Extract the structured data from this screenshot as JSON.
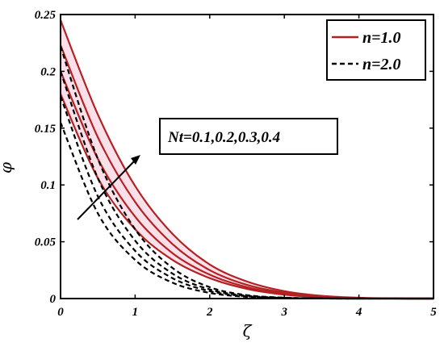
{
  "chart_data": {
    "type": "line",
    "xlabel": "ζ",
    "ylabel": "φ",
    "xlim": [
      0,
      5
    ],
    "ylim": [
      0,
      0.25
    ],
    "x_ticks": [
      "0",
      "1",
      "2",
      "3",
      "4",
      "5"
    ],
    "y_ticks": [
      "0",
      "0.05",
      "0.1",
      "0.15",
      "0.2",
      "0.25"
    ],
    "legend_position": "top-right",
    "annotation": "Nt=0.1,0.2,0.3,0.4",
    "legend": [
      {
        "label": "n=1.0",
        "color": "#b22222",
        "style": "solid"
      },
      {
        "label": "n=2.0",
        "color": "#000000",
        "style": "dashed"
      }
    ],
    "series": [
      {
        "name": "n=1.0",
        "nt": "0.1",
        "color": "#b22222",
        "style": "solid",
        "x": [
          0,
          0.5,
          1,
          1.5,
          2,
          2.5,
          3,
          3.5,
          4,
          4.5,
          5
        ],
        "y": [
          0.18,
          0.106,
          0.061,
          0.034,
          0.018,
          0.0085,
          0.0035,
          0.0012,
          0.0003,
          5e-05,
          0
        ]
      },
      {
        "name": "n=1.0",
        "nt": "0.2",
        "color": "#b22222",
        "style": "solid",
        "x": [
          0,
          0.5,
          1,
          1.5,
          2,
          2.5,
          3,
          3.5,
          4,
          4.5,
          5
        ],
        "y": [
          0.2,
          0.123,
          0.072,
          0.04,
          0.021,
          0.01,
          0.0042,
          0.0015,
          0.0004,
          6e-05,
          0
        ]
      },
      {
        "name": "n=1.0",
        "nt": "0.3",
        "color": "#b22222",
        "style": "solid",
        "x": [
          0,
          0.5,
          1,
          1.5,
          2,
          2.5,
          3,
          3.5,
          4,
          4.5,
          5
        ],
        "y": [
          0.223,
          0.142,
          0.085,
          0.048,
          0.025,
          0.012,
          0.0052,
          0.0019,
          0.0005,
          8e-05,
          0
        ]
      },
      {
        "name": "n=1.0",
        "nt": "0.4",
        "color": "#b22222",
        "style": "solid",
        "x": [
          0,
          0.5,
          1,
          1.5,
          2,
          2.5,
          3,
          3.5,
          4,
          4.5,
          5
        ],
        "y": [
          0.245,
          0.162,
          0.099,
          0.057,
          0.03,
          0.015,
          0.0065,
          0.0024,
          0.0007,
          0.0001,
          0
        ]
      },
      {
        "name": "n=2.0",
        "nt": "0.1",
        "color": "#000000",
        "style": "dashed",
        "x": [
          0,
          0.5,
          1,
          1.5,
          2,
          2.5,
          3,
          3.5,
          4,
          4.5,
          5
        ],
        "y": [
          0.155,
          0.075,
          0.034,
          0.014,
          0.005,
          0.0015,
          0.0004,
          0.0001,
          0,
          0,
          0
        ]
      },
      {
        "name": "n=2.0",
        "nt": "0.2",
        "color": "#000000",
        "style": "dashed",
        "x": [
          0,
          0.5,
          1,
          1.5,
          2,
          2.5,
          3,
          3.5,
          4,
          4.5,
          5
        ],
        "y": [
          0.178,
          0.09,
          0.042,
          0.018,
          0.0065,
          0.002,
          0.0005,
          0.0001,
          0,
          0,
          0
        ]
      },
      {
        "name": "n=2.0",
        "nt": "0.3",
        "color": "#000000",
        "style": "dashed",
        "x": [
          0,
          0.5,
          1,
          1.5,
          2,
          2.5,
          3,
          3.5,
          4,
          4.5,
          5
        ],
        "y": [
          0.2,
          0.106,
          0.051,
          0.022,
          0.008,
          0.0025,
          0.0007,
          0.0001,
          0,
          0,
          0
        ]
      },
      {
        "name": "n=2.0",
        "nt": "0.4",
        "color": "#000000",
        "style": "dashed",
        "x": [
          0,
          0.5,
          1,
          1.5,
          2,
          2.5,
          3,
          3.5,
          4,
          4.5,
          5
        ],
        "y": [
          0.222,
          0.123,
          0.061,
          0.027,
          0.01,
          0.003,
          0.0008,
          0.0002,
          0,
          0,
          0
        ]
      }
    ]
  }
}
